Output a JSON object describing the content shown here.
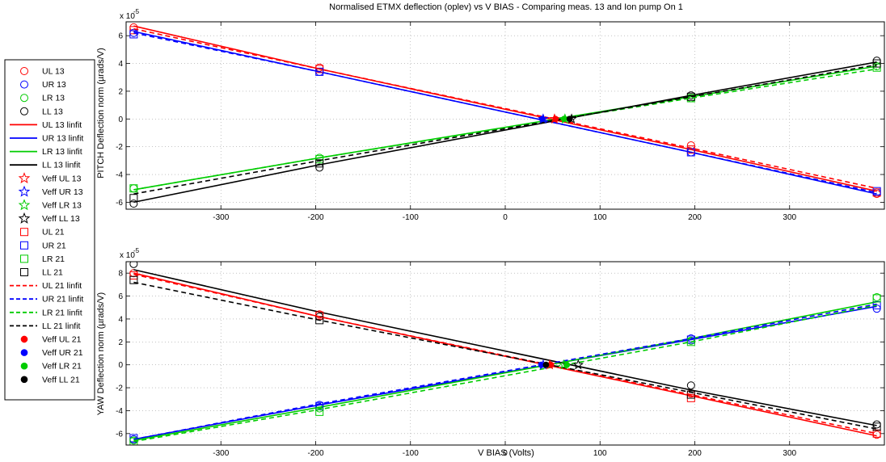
{
  "chart_data": [
    {
      "type": "line",
      "title": "Normalised ETMX deflection (oplev) vs V BIAS - Comparing meas. 13 and Ion pump On 1",
      "ylabel": "PITCH Deflection norm (µrads/V)",
      "xlabel": "",
      "xlim": [
        -400,
        400
      ],
      "ylim": [
        -6.5,
        7
      ],
      "exponent_label": "x 10",
      "exponent_power": "-5",
      "xticks": [
        -300,
        -200,
        -100,
        0,
        100,
        200,
        300
      ],
      "yticks": [
        -6,
        -4,
        -2,
        0,
        2,
        4,
        6
      ],
      "grid": true,
      "x": [
        -392,
        -196,
        196,
        392
      ],
      "series": [
        {
          "name": "UL 13",
          "color": "#ff0000",
          "style": "circle",
          "values": [
            6.6,
            3.7,
            -1.9,
            -5.4
          ]
        },
        {
          "name": "UR 13",
          "color": "#0000ff",
          "style": "circle",
          "values": [
            6.2,
            3.4,
            -2.4,
            -5.3
          ]
        },
        {
          "name": "LR 13",
          "color": "#00cc00",
          "style": "circle",
          "values": [
            -5.0,
            -2.8,
            1.5,
            3.8
          ]
        },
        {
          "name": "LL 13",
          "color": "#000000",
          "style": "circle",
          "values": [
            -6.1,
            -3.5,
            1.7,
            4.2
          ]
        },
        {
          "name": "UL 13 linfit",
          "color": "#ff0000",
          "style": "solid",
          "values": [
            6.7,
            3.6,
            -2.2,
            -5.2
          ]
        },
        {
          "name": "UR 13 linfit",
          "color": "#0000ff",
          "style": "solid",
          "values": [
            6.3,
            3.4,
            -2.4,
            -5.4
          ]
        },
        {
          "name": "LR 13 linfit",
          "color": "#00cc00",
          "style": "solid",
          "values": [
            -5.1,
            -2.8,
            1.6,
            3.8
          ]
        },
        {
          "name": "LL 13 linfit",
          "color": "#000000",
          "style": "solid",
          "values": [
            -6.0,
            -3.3,
            1.7,
            4.1
          ]
        },
        {
          "name": "UL 21",
          "color": "#ff0000",
          "style": "square",
          "values": [
            6.4,
            3.6,
            -2.2,
            -5.3
          ]
        },
        {
          "name": "UR 21",
          "color": "#0000ff",
          "style": "square",
          "values": [
            6.1,
            3.4,
            -2.4,
            -5.2
          ]
        },
        {
          "name": "LR 21",
          "color": "#00cc00",
          "style": "square",
          "values": [
            -5.0,
            -2.9,
            1.5,
            3.7
          ]
        },
        {
          "name": "LL 21",
          "color": "#000000",
          "style": "square",
          "values": [
            -5.7,
            -3.2,
            1.6,
            4.0
          ]
        },
        {
          "name": "UL 21 linfit",
          "color": "#ff0000",
          "style": "dashed",
          "values": [
            6.5,
            3.6,
            -2.1,
            -5.0
          ]
        },
        {
          "name": "UR 21 linfit",
          "color": "#0000ff",
          "style": "dashed",
          "values": [
            6.2,
            3.4,
            -2.4,
            -5.3
          ]
        },
        {
          "name": "LR 21 linfit",
          "color": "#00cc00",
          "style": "dashed",
          "values": [
            -5.1,
            -2.8,
            1.5,
            3.6
          ]
        },
        {
          "name": "LL 21 linfit",
          "color": "#000000",
          "style": "dashed",
          "values": [
            -5.4,
            -3.0,
            1.6,
            3.9
          ]
        }
      ],
      "veff_points": [
        {
          "name": "Veff UL 13",
          "color": "#ff0000",
          "style": "star",
          "x": 52,
          "y": 0
        },
        {
          "name": "Veff UR 13",
          "color": "#0000ff",
          "style": "star",
          "x": 40,
          "y": 0
        },
        {
          "name": "Veff LR 13",
          "color": "#00cc00",
          "style": "star",
          "x": 63,
          "y": 0
        },
        {
          "name": "Veff LL 13",
          "color": "#000000",
          "style": "star",
          "x": 70,
          "y": 0
        },
        {
          "name": "Veff UL 21",
          "color": "#ff0000",
          "style": "dot",
          "x": 53,
          "y": 0
        },
        {
          "name": "Veff UR 21",
          "color": "#0000ff",
          "style": "dot",
          "x": 39,
          "y": 0
        },
        {
          "name": "Veff LR 21",
          "color": "#00cc00",
          "style": "dot",
          "x": 62,
          "y": 0
        },
        {
          "name": "Veff LL 21",
          "color": "#000000",
          "style": "dot",
          "x": 68,
          "y": 0
        }
      ]
    },
    {
      "type": "line",
      "title": "",
      "ylabel": "YAW Deflection norm (µrads/V)",
      "xlabel": "V BIAS (Volts)",
      "xlim": [
        -400,
        400
      ],
      "ylim": [
        -7,
        9
      ],
      "exponent_label": "x 10",
      "exponent_power": "-5",
      "xticks": [
        -300,
        -200,
        -100,
        0,
        100,
        200,
        300
      ],
      "yticks": [
        -6,
        -4,
        -2,
        0,
        2,
        4,
        6,
        8
      ],
      "grid": true,
      "x": [
        -392,
        -196,
        196,
        392
      ],
      "series": [
        {
          "name": "UL 13",
          "color": "#ff0000",
          "style": "circle",
          "values": [
            8.0,
            4.4,
            -2.5,
            -6.1
          ]
        },
        {
          "name": "UR 13",
          "color": "#0000ff",
          "style": "circle",
          "values": [
            -6.5,
            -3.5,
            2.3,
            4.9
          ]
        },
        {
          "name": "LR 13",
          "color": "#00cc00",
          "style": "circle",
          "values": [
            -6.6,
            -3.8,
            2.1,
            5.9
          ]
        },
        {
          "name": "LL 13",
          "color": "#000000",
          "style": "circle",
          "values": [
            8.8,
            4.2,
            -1.8,
            -5.2
          ]
        },
        {
          "name": "UL 13 linfit",
          "color": "#ff0000",
          "style": "solid",
          "values": [
            8.0,
            4.2,
            -2.7,
            -6.2
          ]
        },
        {
          "name": "UR 13 linfit",
          "color": "#0000ff",
          "style": "solid",
          "values": [
            -6.5,
            -3.5,
            2.2,
            5.1
          ]
        },
        {
          "name": "LR 13 linfit",
          "color": "#00cc00",
          "style": "solid",
          "values": [
            -6.6,
            -3.7,
            2.3,
            5.5
          ]
        },
        {
          "name": "LL 13 linfit",
          "color": "#000000",
          "style": "solid",
          "values": [
            8.3,
            4.6,
            -2.2,
            -5.3
          ]
        },
        {
          "name": "UL 21",
          "color": "#ff0000",
          "style": "square",
          "values": [
            7.8,
            4.3,
            -2.9,
            -6.0
          ]
        },
        {
          "name": "UR 21",
          "color": "#0000ff",
          "style": "square",
          "values": [
            -6.4,
            -3.6,
            2.2,
            5.2
          ]
        },
        {
          "name": "LR 21",
          "color": "#00cc00",
          "style": "square",
          "values": [
            -6.7,
            -4.1,
            2.0,
            5.8
          ]
        },
        {
          "name": "LL 21",
          "color": "#000000",
          "style": "square",
          "values": [
            7.4,
            3.9,
            -2.6,
            -5.4
          ]
        },
        {
          "name": "UL 21 linfit",
          "color": "#ff0000",
          "style": "dashed",
          "values": [
            7.9,
            4.2,
            -2.6,
            -6.0
          ]
        },
        {
          "name": "UR 21 linfit",
          "color": "#0000ff",
          "style": "dashed",
          "values": [
            -6.5,
            -3.4,
            2.3,
            5.3
          ]
        },
        {
          "name": "LR 21 linfit",
          "color": "#00cc00",
          "style": "dashed",
          "values": [
            -6.7,
            -3.9,
            2.0,
            5.2
          ]
        },
        {
          "name": "LL 21 linfit",
          "color": "#000000",
          "style": "dashed",
          "values": [
            7.2,
            3.9,
            -2.4,
            -5.6
          ]
        }
      ],
      "veff_points": [
        {
          "name": "Veff UL 13",
          "color": "#ff0000",
          "style": "star",
          "x": 47,
          "y": 0
        },
        {
          "name": "Veff UR 13",
          "color": "#0000ff",
          "style": "star",
          "x": 40,
          "y": 0
        },
        {
          "name": "Veff LR 13",
          "color": "#00cc00",
          "style": "star",
          "x": 62,
          "y": 0
        },
        {
          "name": "Veff LL 13",
          "color": "#000000",
          "style": "star",
          "x": 77,
          "y": 0
        },
        {
          "name": "Veff UL 21",
          "color": "#ff0000",
          "style": "dot",
          "x": 48,
          "y": 0
        },
        {
          "name": "Veff UR 21",
          "color": "#0000ff",
          "style": "dot",
          "x": 38,
          "y": 0
        },
        {
          "name": "Veff LR 21",
          "color": "#00cc00",
          "style": "dot",
          "x": 65,
          "y": 0
        },
        {
          "name": "Veff LL 21",
          "color": "#000000",
          "style": "dot",
          "x": 43,
          "y": 0
        }
      ]
    }
  ],
  "legend": {
    "placement": "left",
    "entries": [
      {
        "label": "UL 13",
        "color": "#ff0000",
        "style": "circle"
      },
      {
        "label": "UR 13",
        "color": "#0000ff",
        "style": "circle"
      },
      {
        "label": "LR 13",
        "color": "#00cc00",
        "style": "circle"
      },
      {
        "label": "LL 13",
        "color": "#000000",
        "style": "circle"
      },
      {
        "label": "UL 13 linfit",
        "color": "#ff0000",
        "style": "solid"
      },
      {
        "label": "UR 13 linfit",
        "color": "#0000ff",
        "style": "solid"
      },
      {
        "label": "LR 13 linfit",
        "color": "#00cc00",
        "style": "solid"
      },
      {
        "label": "LL 13 linfit",
        "color": "#000000",
        "style": "solid"
      },
      {
        "label": "Veff UL 13",
        "color": "#ff0000",
        "style": "star"
      },
      {
        "label": "Veff UR 13",
        "color": "#0000ff",
        "style": "star"
      },
      {
        "label": "Veff LR 13",
        "color": "#00cc00",
        "style": "star"
      },
      {
        "label": "Veff LL 13",
        "color": "#000000",
        "style": "star"
      },
      {
        "label": "UL 21",
        "color": "#ff0000",
        "style": "square"
      },
      {
        "label": "UR 21",
        "color": "#0000ff",
        "style": "square"
      },
      {
        "label": "LR 21",
        "color": "#00cc00",
        "style": "square"
      },
      {
        "label": "LL 21",
        "color": "#000000",
        "style": "square"
      },
      {
        "label": "UL 21 linfit",
        "color": "#ff0000",
        "style": "dashed"
      },
      {
        "label": "UR 21 linfit",
        "color": "#0000ff",
        "style": "dashed"
      },
      {
        "label": "LR 21 linfit",
        "color": "#00cc00",
        "style": "dashed"
      },
      {
        "label": "LL 21 linfit",
        "color": "#000000",
        "style": "dashed"
      },
      {
        "label": "Veff UL 21",
        "color": "#ff0000",
        "style": "dot"
      },
      {
        "label": "Veff UR 21",
        "color": "#0000ff",
        "style": "dot"
      },
      {
        "label": "Veff LR 21",
        "color": "#00cc00",
        "style": "dot"
      },
      {
        "label": "Veff LL 21",
        "color": "#000000",
        "style": "dot"
      }
    ]
  }
}
